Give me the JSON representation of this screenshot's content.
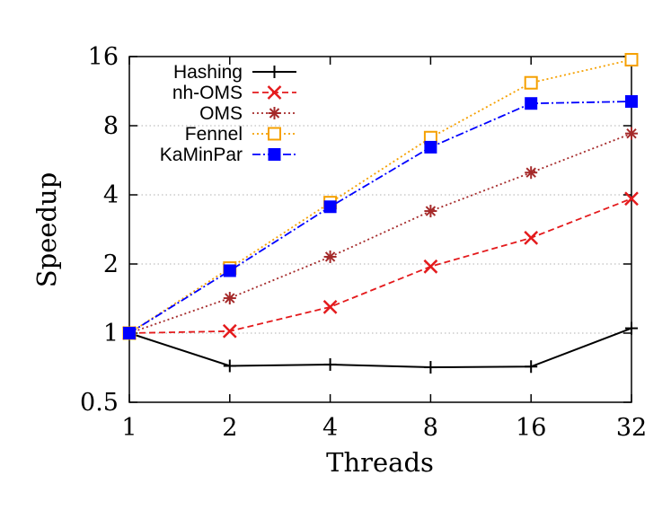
{
  "chart_data": {
    "type": "line",
    "title": "",
    "xlabel": "Threads",
    "ylabel": "Speedup",
    "x": [
      1,
      2,
      4,
      8,
      16,
      32
    ],
    "x_ticks": [
      "1",
      "2",
      "4",
      "8",
      "16",
      "32"
    ],
    "y_ticks": [
      "0.5",
      "1",
      "2",
      "4",
      "8",
      "16"
    ],
    "y_tick_values": [
      0.5,
      1,
      2,
      4,
      8,
      16
    ],
    "xscale": "log2",
    "yscale": "log2",
    "xlim": [
      1,
      32
    ],
    "ylim": [
      0.5,
      16
    ],
    "grid": "horizontal dotted",
    "legend_position": "top-left",
    "series": [
      {
        "name": "Hashing",
        "color": "#000000",
        "dash": "solid",
        "marker": "plus",
        "values": [
          1.0,
          0.72,
          0.73,
          0.71,
          0.715,
          1.05
        ]
      },
      {
        "name": "nh-OMS",
        "color": "#e41a1c",
        "dash": "dashed",
        "marker": "x",
        "values": [
          1.0,
          1.02,
          1.3,
          1.95,
          2.6,
          3.85
        ]
      },
      {
        "name": "OMS",
        "color": "#a52a2a",
        "dash": "dotted",
        "marker": "star",
        "values": [
          1.0,
          1.42,
          2.15,
          3.4,
          5.0,
          7.4
        ]
      },
      {
        "name": "Fennel",
        "color": "#f5a000",
        "dash": "dotted",
        "marker": "open-square",
        "values": [
          1.0,
          1.92,
          3.7,
          7.1,
          12.3,
          15.5
        ]
      },
      {
        "name": "KaMinPar",
        "color": "#0000ff",
        "dash": "dashdot",
        "marker": "filled-square",
        "values": [
          1.0,
          1.87,
          3.55,
          6.45,
          10.0,
          10.2
        ]
      }
    ]
  }
}
